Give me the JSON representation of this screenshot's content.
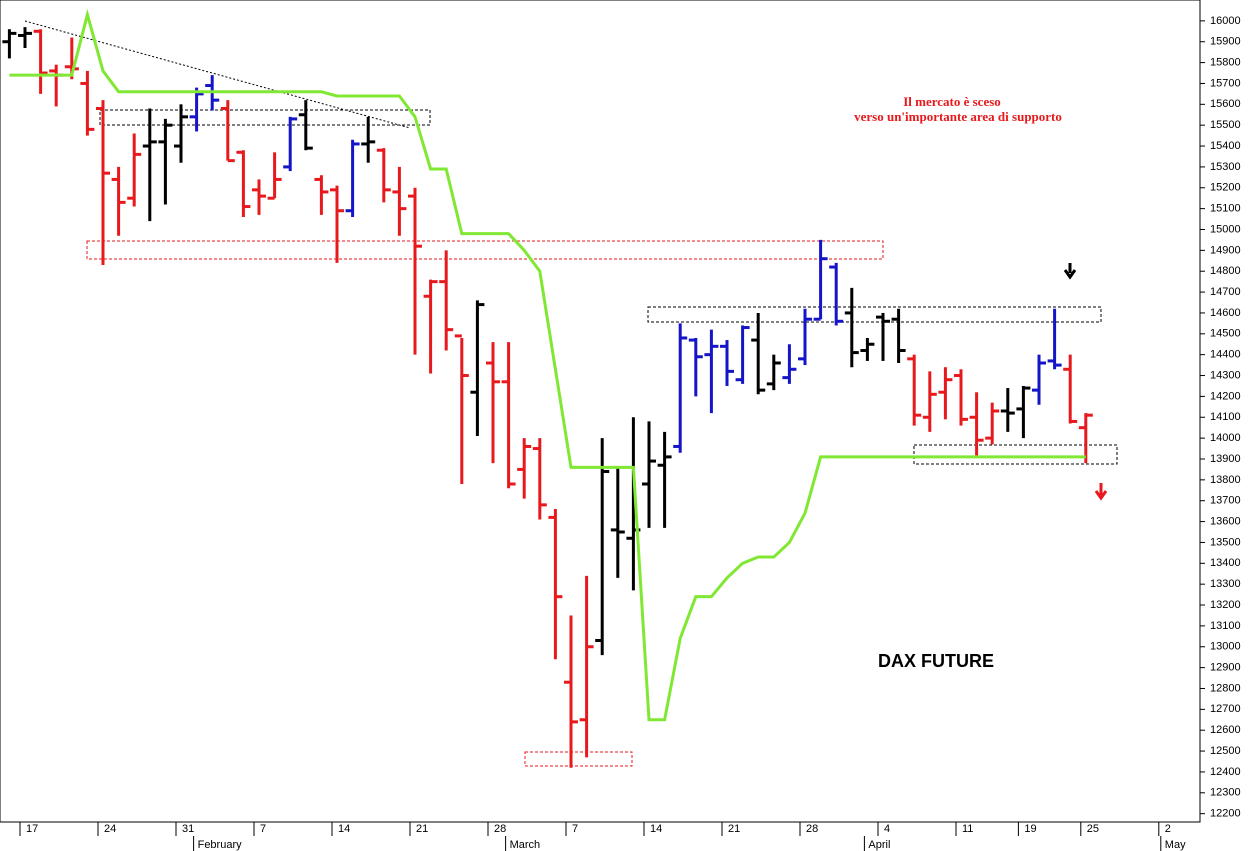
{
  "chart_data": {
    "type": "ohlc",
    "label": "DAX FUTURE",
    "annotation": [
      "Il mercato è sceso",
      "verso un'importante area di supporto"
    ],
    "categories": [
      null,
      "17",
      null,
      null,
      null,
      null,
      "24",
      null,
      null,
      null,
      null,
      "31",
      null,
      null,
      null,
      null,
      "7",
      null,
      null,
      null,
      null,
      "14",
      null,
      null,
      null,
      null,
      "21",
      null,
      null,
      null,
      null,
      "28",
      null,
      null,
      null,
      null,
      "7",
      null,
      null,
      null,
      null,
      "14",
      null,
      null,
      null,
      null,
      "21",
      null,
      null,
      null,
      null,
      "28",
      null,
      null,
      null,
      null,
      "4",
      null,
      null,
      null,
      null,
      "11",
      null,
      null,
      null,
      "19",
      null,
      null,
      null,
      "25",
      null,
      null,
      null,
      null,
      "2",
      null,
      null
    ],
    "month_labels": [
      null,
      null,
      null,
      null,
      null,
      null,
      null,
      null,
      null,
      null,
      null,
      null,
      "February",
      null,
      null,
      null,
      null,
      null,
      null,
      null,
      null,
      null,
      null,
      null,
      null,
      null,
      null,
      null,
      null,
      null,
      null,
      null,
      "March",
      null,
      null,
      null,
      null,
      null,
      null,
      null,
      null,
      null,
      null,
      null,
      null,
      null,
      null,
      null,
      null,
      null,
      null,
      null,
      null,
      null,
      null,
      "April",
      null,
      null,
      null,
      null,
      null,
      null,
      null,
      null,
      null,
      null,
      null,
      null,
      null,
      null,
      null,
      null,
      null,
      null,
      "May",
      null,
      null
    ],
    "open": [
      15900,
      15930,
      15950,
      15760,
      15780,
      15700,
      15580,
      15240,
      15150,
      15400,
      15420,
      15400,
      15540,
      15690,
      15580,
      15370,
      15190,
      15150,
      15300,
      15550,
      15240,
      15190,
      15090,
      15410,
      15380,
      15180,
      15160,
      14680,
      14750,
      14490,
      14220,
      14360,
      14270,
      13850,
      13950,
      13620,
      12830,
      12650,
      13030,
      13560,
      13520,
      13780,
      13870,
      13960,
      14470,
      14400,
      14440,
      14280,
      14470,
      14260,
      14290,
      14380,
      14570,
      14820,
      14600,
      14420,
      14580,
      14570,
      14380,
      14100,
      14220,
      14300,
      14100,
      14000,
      14130,
      14140,
      14230,
      14370,
      14330,
      14050,
      null,
      null,
      null,
      null,
      null,
      null,
      null
    ],
    "high": [
      15960,
      15970,
      15960,
      15790,
      15920,
      15760,
      15620,
      15300,
      15460,
      15580,
      15530,
      15600,
      15680,
      15740,
      15620,
      15380,
      15240,
      15370,
      15540,
      15620,
      15260,
      15210,
      15430,
      15540,
      15390,
      15300,
      15200,
      14760,
      14900,
      14480,
      14660,
      14460,
      14460,
      14000,
      14000,
      13660,
      13150,
      13340,
      14000,
      13860,
      14100,
      14080,
      14030,
      14550,
      14480,
      14520,
      14470,
      14540,
      14600,
      14400,
      14450,
      14620,
      14950,
      14840,
      14720,
      14480,
      14600,
      14620,
      14400,
      14320,
      14340,
      14330,
      14220,
      14170,
      14240,
      14250,
      14400,
      14620,
      14400,
      14120,
      null,
      null,
      null,
      null,
      null,
      null,
      null
    ],
    "low": [
      15820,
      15870,
      15650,
      15590,
      15720,
      15450,
      14830,
      14970,
      15110,
      15040,
      15120,
      15320,
      15470,
      15570,
      15330,
      15060,
      15070,
      15150,
      15280,
      15380,
      15070,
      14840,
      15060,
      15320,
      15130,
      14970,
      14400,
      14310,
      14420,
      13780,
      14010,
      13880,
      13760,
      13710,
      13610,
      12940,
      12420,
      12470,
      12960,
      13330,
      13270,
      13570,
      13570,
      13930,
      14200,
      14120,
      14250,
      14260,
      14210,
      14230,
      14260,
      14350,
      14570,
      14540,
      14340,
      14370,
      14370,
      14360,
      14060,
      14030,
      14090,
      14060,
      13910,
      13970,
      14030,
      14000,
      14160,
      14330,
      14070,
      13880,
      null,
      null,
      null,
      null,
      null,
      null,
      null
    ],
    "close": [
      15940,
      15940,
      15750,
      15740,
      15770,
      15480,
      15270,
      15130,
      15360,
      15420,
      15500,
      15540,
      15650,
      15620,
      15330,
      15110,
      15160,
      15240,
      15530,
      15390,
      15180,
      15090,
      15410,
      15420,
      15190,
      15100,
      14920,
      14750,
      14520,
      14300,
      14640,
      14270,
      13780,
      13960,
      13680,
      13240,
      12640,
      13000,
      13840,
      13550,
      13560,
      13890,
      13910,
      14480,
      14390,
      14440,
      14320,
      14530,
      14230,
      14360,
      14330,
      14570,
      14860,
      14560,
      14410,
      14450,
      14560,
      14420,
      14110,
      14210,
      14280,
      14090,
      13990,
      14130,
      14120,
      14240,
      14360,
      14350,
      14080,
      14110,
      null,
      null,
      null,
      null,
      null,
      null,
      null
    ],
    "bar_colors": [
      "#000000",
      "#000000",
      "#e8191c",
      "#e8191c",
      "#e8191c",
      "#e8191c",
      "#e8191c",
      "#e8191c",
      "#e8191c",
      "#000000",
      "#000000",
      "#000000",
      "#1414c8",
      "#1414c8",
      "#e8191c",
      "#e8191c",
      "#e8191c",
      "#e8191c",
      "#1414c8",
      "#000000",
      "#e8191c",
      "#e8191c",
      "#1414c8",
      "#000000",
      "#e8191c",
      "#e8191c",
      "#e8191c",
      "#e8191c",
      "#e8191c",
      "#e8191c",
      "#000000",
      "#e8191c",
      "#e8191c",
      "#e8191c",
      "#e8191c",
      "#e8191c",
      "#e8191c",
      "#e8191c",
      "#000000",
      "#000000",
      "#000000",
      "#000000",
      "#000000",
      "#1414c8",
      "#1414c8",
      "#1414c8",
      "#1414c8",
      "#1414c8",
      "#000000",
      "#000000",
      "#1414c8",
      "#1414c8",
      "#1414c8",
      "#1414c8",
      "#000000",
      "#000000",
      "#000000",
      "#000000",
      "#e8191c",
      "#e8191c",
      "#e8191c",
      "#e8191c",
      "#e8191c",
      "#e8191c",
      "#000000",
      "#000000",
      "#1414c8",
      "#1414c8",
      "#e8191c",
      "#e8191c",
      null,
      null,
      null,
      null,
      null,
      null,
      null
    ],
    "line": {
      "color": "#80e832",
      "values": [
        15740,
        15740,
        15740,
        15740,
        15740,
        16030,
        15760,
        15660,
        15660,
        15660,
        15660,
        15660,
        15660,
        15660,
        15660,
        15660,
        15660,
        15660,
        15660,
        15660,
        15660,
        15640,
        15640,
        15640,
        15640,
        15640,
        15540,
        15290,
        15290,
        14980,
        14980,
        14980,
        14980,
        14900,
        14800,
        14330,
        13860,
        13860,
        13860,
        13860,
        13860,
        12650,
        12650,
        13040,
        13240,
        13240,
        13330,
        13400,
        13430,
        13430,
        13500,
        13640,
        13910,
        13910,
        13910,
        13910,
        13910,
        13910,
        13910,
        13910,
        13910,
        13910,
        13910,
        13910,
        13910,
        13910,
        13910,
        13910,
        13910,
        13910,
        null,
        null,
        null,
        null,
        null,
        null,
        null
      ]
    },
    "ylim": [
      12160,
      16100
    ],
    "yticks": [
      12200,
      12300,
      12400,
      12500,
      12600,
      12700,
      12800,
      12900,
      13000,
      13100,
      13200,
      13300,
      13400,
      13500,
      13600,
      13700,
      13800,
      13900,
      14000,
      14100,
      14200,
      14300,
      14400,
      14500,
      14600,
      14700,
      14800,
      14900,
      15000,
      15100,
      15200,
      15300,
      15400,
      15500,
      15600,
      15700,
      15800,
      15900,
      16000
    ]
  }
}
